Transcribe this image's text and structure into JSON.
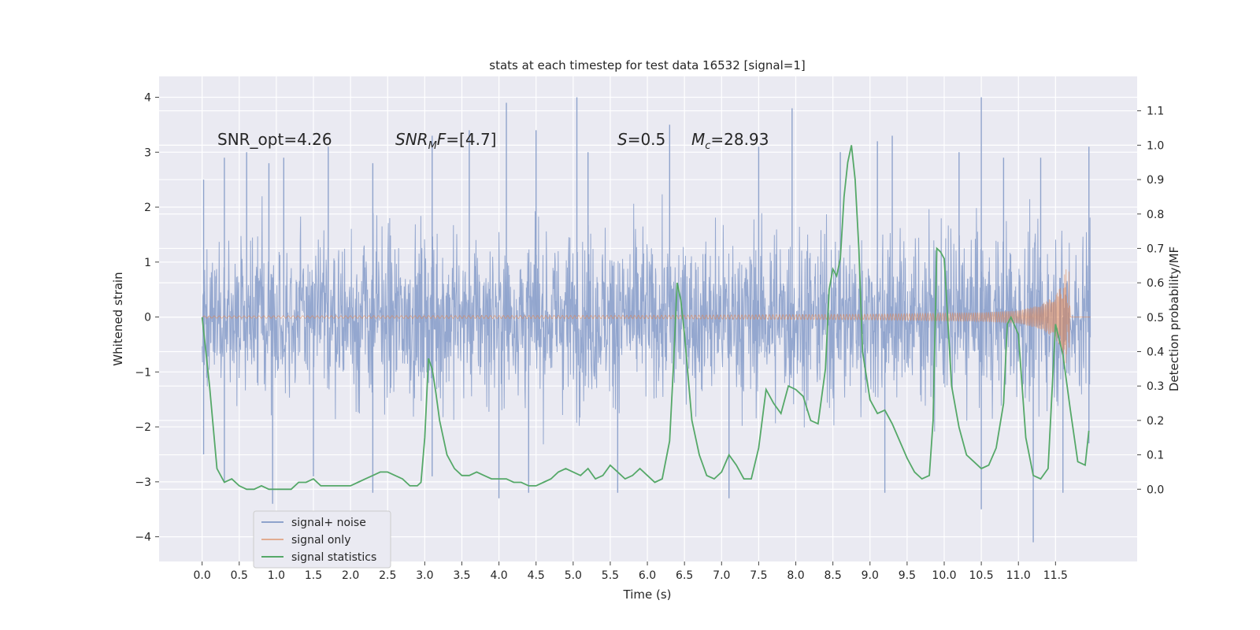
{
  "chart_data": {
    "type": "line",
    "title": "stats at each timestep for test data 16532 [signal=1]",
    "xlabel": "Time (s)",
    "ylabel": "Whitened strain",
    "ylabel_right": "Detection probability/MF",
    "xlim": [
      -0.58,
      12.6
    ],
    "ylim": [
      -4.45,
      4.38
    ],
    "ylim_right": [
      -0.21,
      1.2
    ],
    "x_ticks": [
      "0.0",
      "0.5",
      "1.0",
      "1.5",
      "2.0",
      "2.5",
      "3.0",
      "3.5",
      "4.0",
      "4.5",
      "5.0",
      "5.5",
      "6.0",
      "6.5",
      "7.0",
      "7.5",
      "8.0",
      "8.5",
      "9.0",
      "9.5",
      "10.0",
      "10.5",
      "11.0",
      "11.5"
    ],
    "y_ticks": [
      "4",
      "3",
      "2",
      "1",
      "0",
      "−1",
      "−2",
      "−3",
      "−4"
    ],
    "y_ticks_right": [
      "1.1",
      "1.0",
      "0.9",
      "0.8",
      "0.7",
      "0.6",
      "0.5",
      "0.4",
      "0.3",
      "0.2",
      "0.1",
      "0.0"
    ],
    "grid": true,
    "legend_placement": "lower-left",
    "annotations": [
      {
        "text": "SNR_opt=4.26",
        "x": 0.2,
        "y": 3.1
      },
      {
        "text": "SNRMF=[4.7]",
        "x": 2.6,
        "y": 3.1
      },
      {
        "text": "S=0.5",
        "x": 5.6,
        "y": 3.1
      },
      {
        "text": "Mc=28.93",
        "x": 6.6,
        "y": 3.1
      }
    ],
    "series": [
      {
        "name": "signal+ noise",
        "color": "#8fa3cc",
        "axis": "left",
        "description_only": false,
        "peaks": [
          [
            0.02,
            2.5
          ],
          [
            0.3,
            2.9
          ],
          [
            0.6,
            3.0
          ],
          [
            0.9,
            2.8
          ],
          [
            1.1,
            2.9
          ],
          [
            1.7,
            3.1
          ],
          [
            2.3,
            2.8
          ],
          [
            3.1,
            3.3
          ],
          [
            3.6,
            3.4
          ],
          [
            4.1,
            3.9
          ],
          [
            4.5,
            3.4
          ],
          [
            5.05,
            4.0
          ],
          [
            5.2,
            3.0
          ],
          [
            6.3,
            3.5
          ],
          [
            7.5,
            3.1
          ],
          [
            7.95,
            3.8
          ],
          [
            8.6,
            3.0
          ],
          [
            9.1,
            3.2
          ],
          [
            9.3,
            3.3
          ],
          [
            10.2,
            3.0
          ],
          [
            10.5,
            4.0
          ],
          [
            10.8,
            2.9
          ],
          [
            11.3,
            2.9
          ],
          [
            11.95,
            3.1
          ]
        ],
        "troughs": [
          [
            0.02,
            -2.5
          ],
          [
            0.3,
            -3.0
          ],
          [
            0.95,
            -3.4
          ],
          [
            1.5,
            -2.9
          ],
          [
            2.3,
            -3.2
          ],
          [
            3.1,
            -2.9
          ],
          [
            4.0,
            -3.3
          ],
          [
            4.4,
            -3.2
          ],
          [
            5.6,
            -3.2
          ],
          [
            7.1,
            -3.3
          ],
          [
            9.2,
            -3.2
          ],
          [
            10.5,
            -3.5
          ],
          [
            11.2,
            -4.1
          ],
          [
            11.6,
            -3.2
          ],
          [
            11.95,
            -2.3
          ]
        ]
      },
      {
        "name": "signal only",
        "color": "#dd8452",
        "axis": "left",
        "envelope": [
          [
            0.0,
            0.02
          ],
          [
            6.0,
            0.03
          ],
          [
            9.0,
            0.05
          ],
          [
            10.5,
            0.08
          ],
          [
            11.0,
            0.12
          ],
          [
            11.3,
            0.22
          ],
          [
            11.5,
            0.4
          ],
          [
            11.6,
            0.65
          ],
          [
            11.65,
            0.95
          ],
          [
            11.68,
            0.9
          ],
          [
            11.7,
            0.0
          ]
        ]
      },
      {
        "name": "signal statistics",
        "color": "#55a868",
        "axis": "right",
        "x": [
          0.0,
          0.1,
          0.2,
          0.3,
          0.4,
          0.5,
          0.6,
          0.7,
          0.8,
          0.9,
          1.0,
          1.1,
          1.2,
          1.3,
          1.4,
          1.5,
          1.6,
          1.7,
          1.8,
          1.9,
          2.0,
          2.1,
          2.2,
          2.3,
          2.4,
          2.5,
          2.6,
          2.7,
          2.8,
          2.9,
          2.95,
          3.0,
          3.05,
          3.1,
          3.15,
          3.2,
          3.3,
          3.4,
          3.5,
          3.6,
          3.7,
          3.8,
          3.9,
          4.0,
          4.1,
          4.2,
          4.3,
          4.4,
          4.5,
          4.6,
          4.7,
          4.8,
          4.9,
          5.0,
          5.1,
          5.2,
          5.3,
          5.4,
          5.5,
          5.6,
          5.7,
          5.8,
          5.9,
          6.0,
          6.1,
          6.2,
          6.3,
          6.35,
          6.4,
          6.45,
          6.5,
          6.6,
          6.7,
          6.8,
          6.9,
          7.0,
          7.1,
          7.2,
          7.3,
          7.4,
          7.5,
          7.6,
          7.7,
          7.8,
          7.9,
          8.0,
          8.1,
          8.2,
          8.3,
          8.4,
          8.45,
          8.5,
          8.55,
          8.6,
          8.65,
          8.7,
          8.75,
          8.8,
          8.85,
          8.9,
          9.0,
          9.1,
          9.2,
          9.3,
          9.4,
          9.5,
          9.6,
          9.7,
          9.8,
          9.85,
          9.9,
          9.95,
          10.0,
          10.1,
          10.2,
          10.3,
          10.4,
          10.5,
          10.6,
          10.7,
          10.8,
          10.85,
          10.9,
          11.0,
          11.1,
          11.2,
          11.3,
          11.4,
          11.5,
          11.6,
          11.7,
          11.8,
          11.9,
          11.95
        ],
        "values": [
          0.5,
          0.3,
          0.06,
          0.02,
          0.03,
          0.01,
          0.0,
          0.0,
          0.01,
          0.0,
          0.0,
          0.0,
          0.0,
          0.02,
          0.02,
          0.03,
          0.01,
          0.01,
          0.01,
          0.01,
          0.01,
          0.02,
          0.03,
          0.04,
          0.05,
          0.05,
          0.04,
          0.03,
          0.01,
          0.01,
          0.02,
          0.15,
          0.38,
          0.35,
          0.28,
          0.2,
          0.1,
          0.06,
          0.04,
          0.04,
          0.05,
          0.04,
          0.03,
          0.03,
          0.03,
          0.02,
          0.02,
          0.01,
          0.01,
          0.02,
          0.03,
          0.05,
          0.06,
          0.05,
          0.04,
          0.06,
          0.03,
          0.04,
          0.07,
          0.05,
          0.03,
          0.04,
          0.06,
          0.04,
          0.02,
          0.03,
          0.14,
          0.35,
          0.6,
          0.55,
          0.45,
          0.2,
          0.1,
          0.04,
          0.03,
          0.05,
          0.1,
          0.07,
          0.03,
          0.03,
          0.12,
          0.29,
          0.25,
          0.22,
          0.3,
          0.29,
          0.27,
          0.2,
          0.19,
          0.35,
          0.58,
          0.64,
          0.62,
          0.67,
          0.85,
          0.95,
          1.0,
          0.9,
          0.7,
          0.4,
          0.26,
          0.22,
          0.23,
          0.19,
          0.14,
          0.09,
          0.05,
          0.03,
          0.04,
          0.2,
          0.7,
          0.69,
          0.67,
          0.3,
          0.18,
          0.1,
          0.08,
          0.06,
          0.07,
          0.12,
          0.25,
          0.48,
          0.5,
          0.45,
          0.15,
          0.04,
          0.03,
          0.06,
          0.48,
          0.39,
          0.23,
          0.08,
          0.07,
          0.17
        ]
      }
    ]
  },
  "legend": {
    "items": [
      {
        "label": "signal+ noise",
        "color": "#8fa3cc"
      },
      {
        "label": "signal only",
        "color": "#dd8452"
      },
      {
        "label": "signal statistics",
        "color": "#55a868"
      }
    ]
  }
}
